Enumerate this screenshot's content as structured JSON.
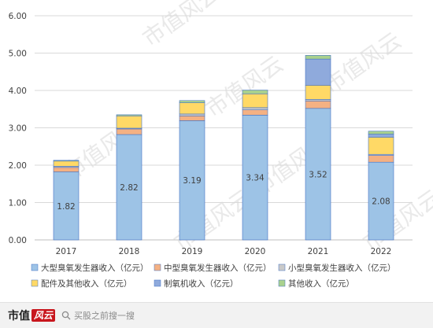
{
  "chart_data": {
    "type": "bar",
    "stacked": true,
    "categories": [
      "2017",
      "2018",
      "2019",
      "2020",
      "2021",
      "2022"
    ],
    "ylim": [
      0,
      6
    ],
    "yticks": [
      "0.00",
      "1.00",
      "2.00",
      "3.00",
      "4.00",
      "5.00",
      "6.00"
    ],
    "grid": true,
    "legend_position": "bottom",
    "series": [
      {
        "name": "大型臭氧发生器收入（亿元）",
        "color": "#9dc3e6",
        "values": [
          1.82,
          2.82,
          3.19,
          3.34,
          3.52,
          2.08
        ],
        "labels": [
          "1.82",
          "2.82",
          "3.19",
          "3.34",
          "3.52",
          "2.08"
        ]
      },
      {
        "name": "中型臭氧发生器收入（亿元）",
        "color": "#f4b183",
        "values": [
          0.12,
          0.15,
          0.13,
          0.14,
          0.2,
          0.18
        ]
      },
      {
        "name": "小型臭氧发生器收入（亿元）",
        "color": "#c9c9c9",
        "values": [
          0.03,
          0.02,
          0.05,
          0.06,
          0.04,
          0.03
        ]
      },
      {
        "name": "配件及其他收入（亿元）",
        "color": "#ffd966",
        "values": [
          0.14,
          0.33,
          0.3,
          0.37,
          0.38,
          0.46
        ]
      },
      {
        "name": "制氧机收入（亿元）",
        "color": "#8faadc",
        "values": [
          0,
          0,
          0,
          0,
          0.7,
          0.08
        ]
      },
      {
        "name": "其他收入（亿元）",
        "color": "#a9d18e",
        "values": [
          0.02,
          0.03,
          0.06,
          0.1,
          0.1,
          0.08
        ]
      }
    ],
    "bar_stroke": "#4472c4"
  },
  "footer": {
    "brand_text": "市值",
    "brand_mark": "风云",
    "search_placeholder": "买股之前搜一搜"
  },
  "watermark": "市值风云"
}
